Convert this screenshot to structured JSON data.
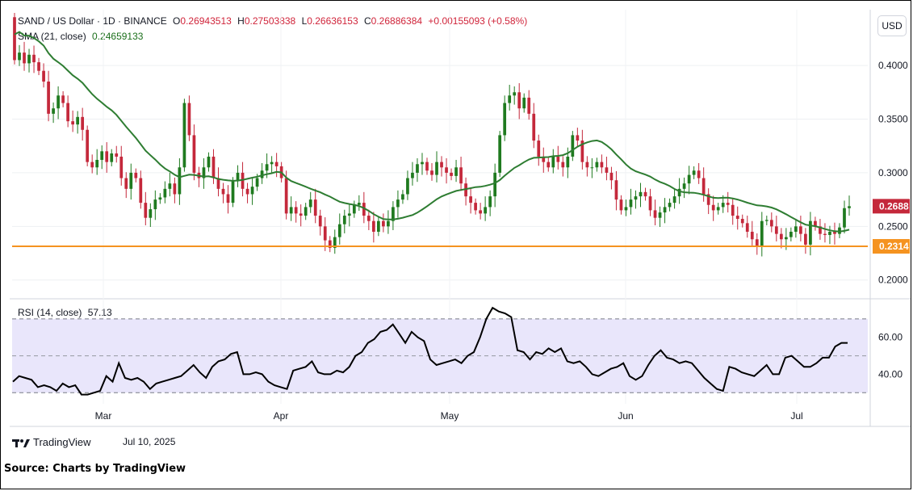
{
  "header": {
    "symbol": "SAND / US Dollar · 1D · BINANCE",
    "o_label": "O",
    "o_value": "0.26943513",
    "h_label": "H",
    "h_value": "0.27503838",
    "l_label": "L",
    "l_value": "0.26636153",
    "c_label": "C",
    "c_value": "0.26886384",
    "change": "+0.00155093 (+0.58%)",
    "sma_label": "SMA (21, close)",
    "sma_value": "0.24659133"
  },
  "rsi_header": {
    "label": "RSI (14, close)",
    "value": "57.13"
  },
  "currency_button": "USD",
  "footer": {
    "brand": "TradingView",
    "date": "Jul 10, 2025",
    "source": "Source: Charts by TradingView"
  },
  "chart_data": [
    {
      "type": "candlestick",
      "title": "SAND / US Dollar · 1D · BINANCE",
      "y_ticks": [
        "0.4000",
        "0.3500",
        "0.3000",
        "0.2500",
        "0.2000"
      ],
      "y_range": [
        0.184,
        0.452
      ],
      "x_ticks": [
        "Mar",
        "Apr",
        "May",
        "Jun",
        "Jul"
      ],
      "current_price_label": "0.2688",
      "support_level": 0.2314,
      "support_label": "0.2314",
      "colors": {
        "up": "#1f7a1f",
        "down": "#c4283b",
        "sma": "#2e7d32",
        "support": "#f59320",
        "price_tag": "#c4283b",
        "support_tag": "#f59320"
      },
      "candles_close": [
        0.405,
        0.412,
        0.402,
        0.41,
        0.403,
        0.395,
        0.385,
        0.355,
        0.36,
        0.372,
        0.365,
        0.348,
        0.345,
        0.352,
        0.34,
        0.31,
        0.305,
        0.312,
        0.32,
        0.31,
        0.318,
        0.315,
        0.295,
        0.285,
        0.3,
        0.295,
        0.272,
        0.258,
        0.266,
        0.275,
        0.277,
        0.285,
        0.29,
        0.28,
        0.305,
        0.365,
        0.335,
        0.3,
        0.295,
        0.305,
        0.315,
        0.295,
        0.285,
        0.28,
        0.272,
        0.292,
        0.3,
        0.285,
        0.28,
        0.287,
        0.295,
        0.302,
        0.308,
        0.31,
        0.306,
        0.295,
        0.262,
        0.268,
        0.262,
        0.26,
        0.268,
        0.275,
        0.26,
        0.25,
        0.237,
        0.23,
        0.24,
        0.252,
        0.26,
        0.262,
        0.27,
        0.272,
        0.26,
        0.255,
        0.245,
        0.255,
        0.25,
        0.255,
        0.268,
        0.275,
        0.28,
        0.295,
        0.3,
        0.308,
        0.31,
        0.302,
        0.298,
        0.31,
        0.305,
        0.3,
        0.297,
        0.305,
        0.29,
        0.278,
        0.272,
        0.265,
        0.262,
        0.268,
        0.278,
        0.3,
        0.335,
        0.365,
        0.372,
        0.375,
        0.36,
        0.37,
        0.355,
        0.33,
        0.315,
        0.31,
        0.305,
        0.315,
        0.31,
        0.305,
        0.315,
        0.335,
        0.33,
        0.31,
        0.305,
        0.305,
        0.31,
        0.305,
        0.3,
        0.293,
        0.275,
        0.265,
        0.268,
        0.275,
        0.278,
        0.282,
        0.278,
        0.265,
        0.258,
        0.263,
        0.268,
        0.272,
        0.278,
        0.285,
        0.29,
        0.298,
        0.302,
        0.295,
        0.28,
        0.27,
        0.265,
        0.268,
        0.272,
        0.27,
        0.26,
        0.257,
        0.253,
        0.245,
        0.238,
        0.232,
        0.255,
        0.256,
        0.25,
        0.243,
        0.238,
        0.24,
        0.245,
        0.25,
        0.243,
        0.233,
        0.255,
        0.25,
        0.243,
        0.242,
        0.245,
        0.243,
        0.249,
        0.267,
        0.2688
      ],
      "sma_series_range": [
        0.24659133
      ],
      "note_order": "daily candles left to right"
    },
    {
      "type": "line",
      "title": "RSI (14, close)",
      "y_ticks": [
        "60.00",
        "40.00"
      ],
      "y_range": [
        24,
        80
      ],
      "bands": [
        70,
        50,
        30
      ],
      "line_color": "#000000",
      "band_fill": "#e9e6fb",
      "last_value": 57.13,
      "values": [
        36,
        39,
        38,
        37,
        33,
        34,
        33,
        31,
        35,
        33,
        34,
        29,
        29,
        30,
        31,
        39,
        36,
        46,
        38,
        37,
        38,
        36,
        32,
        35,
        36,
        37,
        38,
        39,
        42,
        45,
        41,
        38,
        44,
        47,
        48,
        51,
        52,
        40,
        40,
        41,
        40,
        36,
        34,
        33,
        32,
        42,
        43,
        44,
        47,
        41,
        40,
        40,
        42,
        41,
        44,
        50,
        52,
        57,
        59,
        63,
        64,
        67,
        62,
        57,
        63,
        60,
        58,
        48,
        45,
        46,
        47,
        48,
        46,
        50,
        52,
        60,
        70,
        76,
        74,
        73,
        71,
        53,
        52,
        48,
        52,
        51,
        54,
        52,
        54,
        47,
        46,
        47,
        44,
        40,
        39,
        41,
        43,
        44,
        46,
        39,
        37,
        39,
        45,
        50,
        53,
        49,
        48,
        46,
        47,
        46,
        42,
        38,
        35,
        32,
        31,
        44,
        43,
        41,
        40,
        39,
        42,
        45,
        40,
        40,
        49,
        50,
        47,
        44,
        44,
        46,
        49,
        49,
        55,
        57,
        57
      ]
    }
  ]
}
